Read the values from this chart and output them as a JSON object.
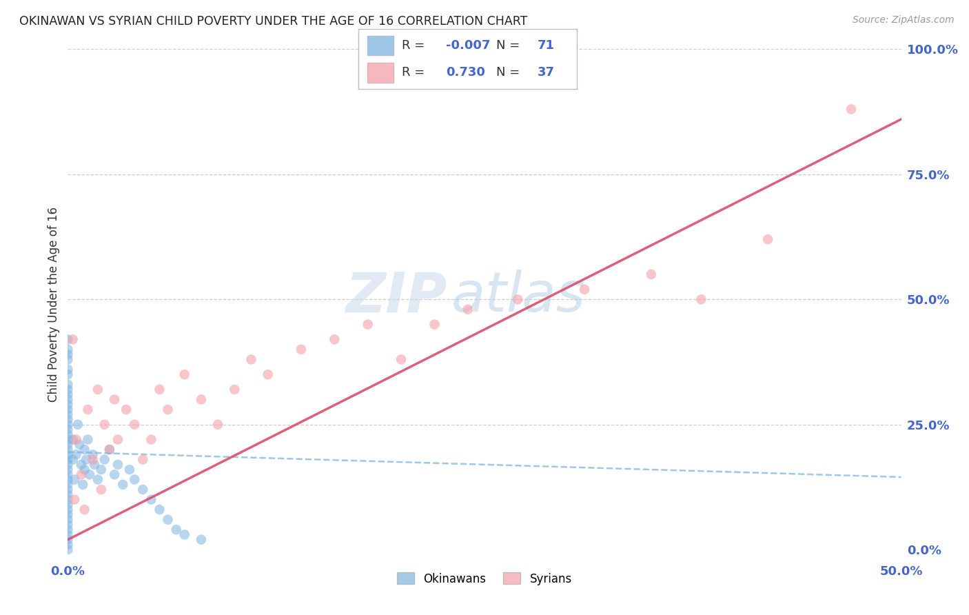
{
  "title": "OKINAWAN VS SYRIAN CHILD POVERTY UNDER THE AGE OF 16 CORRELATION CHART",
  "source": "Source: ZipAtlas.com",
  "ylabel": "Child Poverty Under the Age of 16",
  "xlim": [
    0.0,
    0.5
  ],
  "ylim": [
    -0.02,
    1.0
  ],
  "okinawan_color": "#7EB3E0",
  "syrian_color": "#F4A0A8",
  "okinawan_line_color": "#7EB3E0",
  "syrian_line_color": "#D94F6A",
  "legend_okinawan_label": "Okinawans",
  "legend_syrian_label": "Syrians",
  "R_okinawan": -0.007,
  "N_okinawan": 71,
  "R_syrian": 0.73,
  "N_syrian": 37,
  "watermark_zip": "ZIP",
  "watermark_atlas": "atlas",
  "background_color": "#FFFFFF",
  "ok_x": [
    0.0,
    0.0,
    0.0,
    0.0,
    0.0,
    0.0,
    0.0,
    0.0,
    0.0,
    0.0,
    0.0,
    0.0,
    0.0,
    0.0,
    0.0,
    0.0,
    0.0,
    0.0,
    0.0,
    0.0,
    0.0,
    0.0,
    0.0,
    0.0,
    0.0,
    0.0,
    0.0,
    0.0,
    0.0,
    0.0,
    0.0,
    0.0,
    0.0,
    0.0,
    0.0,
    0.0,
    0.0,
    0.0,
    0.0,
    0.0,
    0.003,
    0.003,
    0.004,
    0.005,
    0.006,
    0.007,
    0.008,
    0.009,
    0.01,
    0.01,
    0.011,
    0.012,
    0.013,
    0.015,
    0.016,
    0.018,
    0.02,
    0.022,
    0.025,
    0.028,
    0.03,
    0.033,
    0.037,
    0.04,
    0.045,
    0.05,
    0.055,
    0.06,
    0.065,
    0.07,
    0.08
  ],
  "ok_y": [
    0.42,
    0.4,
    0.38,
    0.35,
    0.32,
    0.3,
    0.28,
    0.26,
    0.24,
    0.22,
    0.2,
    0.18,
    0.16,
    0.14,
    0.12,
    0.1,
    0.08,
    0.06,
    0.04,
    0.02,
    0.01,
    0.03,
    0.05,
    0.07,
    0.09,
    0.11,
    0.13,
    0.15,
    0.17,
    0.19,
    0.21,
    0.23,
    0.25,
    0.27,
    0.29,
    0.31,
    0.33,
    0.36,
    0.39,
    0.0,
    0.22,
    0.18,
    0.14,
    0.19,
    0.25,
    0.21,
    0.17,
    0.13,
    0.2,
    0.16,
    0.18,
    0.22,
    0.15,
    0.19,
    0.17,
    0.14,
    0.16,
    0.18,
    0.2,
    0.15,
    0.17,
    0.13,
    0.16,
    0.14,
    0.12,
    0.1,
    0.08,
    0.06,
    0.04,
    0.03,
    0.02
  ],
  "sy_x": [
    0.003,
    0.004,
    0.005,
    0.008,
    0.01,
    0.012,
    0.015,
    0.018,
    0.02,
    0.022,
    0.025,
    0.028,
    0.03,
    0.035,
    0.04,
    0.045,
    0.05,
    0.055,
    0.06,
    0.07,
    0.08,
    0.09,
    0.1,
    0.11,
    0.12,
    0.14,
    0.16,
    0.18,
    0.2,
    0.22,
    0.24,
    0.27,
    0.31,
    0.35,
    0.38,
    0.42,
    0.47
  ],
  "sy_y": [
    0.42,
    0.1,
    0.22,
    0.15,
    0.08,
    0.28,
    0.18,
    0.32,
    0.12,
    0.25,
    0.2,
    0.3,
    0.22,
    0.28,
    0.25,
    0.18,
    0.22,
    0.32,
    0.28,
    0.35,
    0.3,
    0.25,
    0.32,
    0.38,
    0.35,
    0.4,
    0.42,
    0.45,
    0.38,
    0.45,
    0.48,
    0.5,
    0.52,
    0.55,
    0.5,
    0.62,
    0.88
  ]
}
